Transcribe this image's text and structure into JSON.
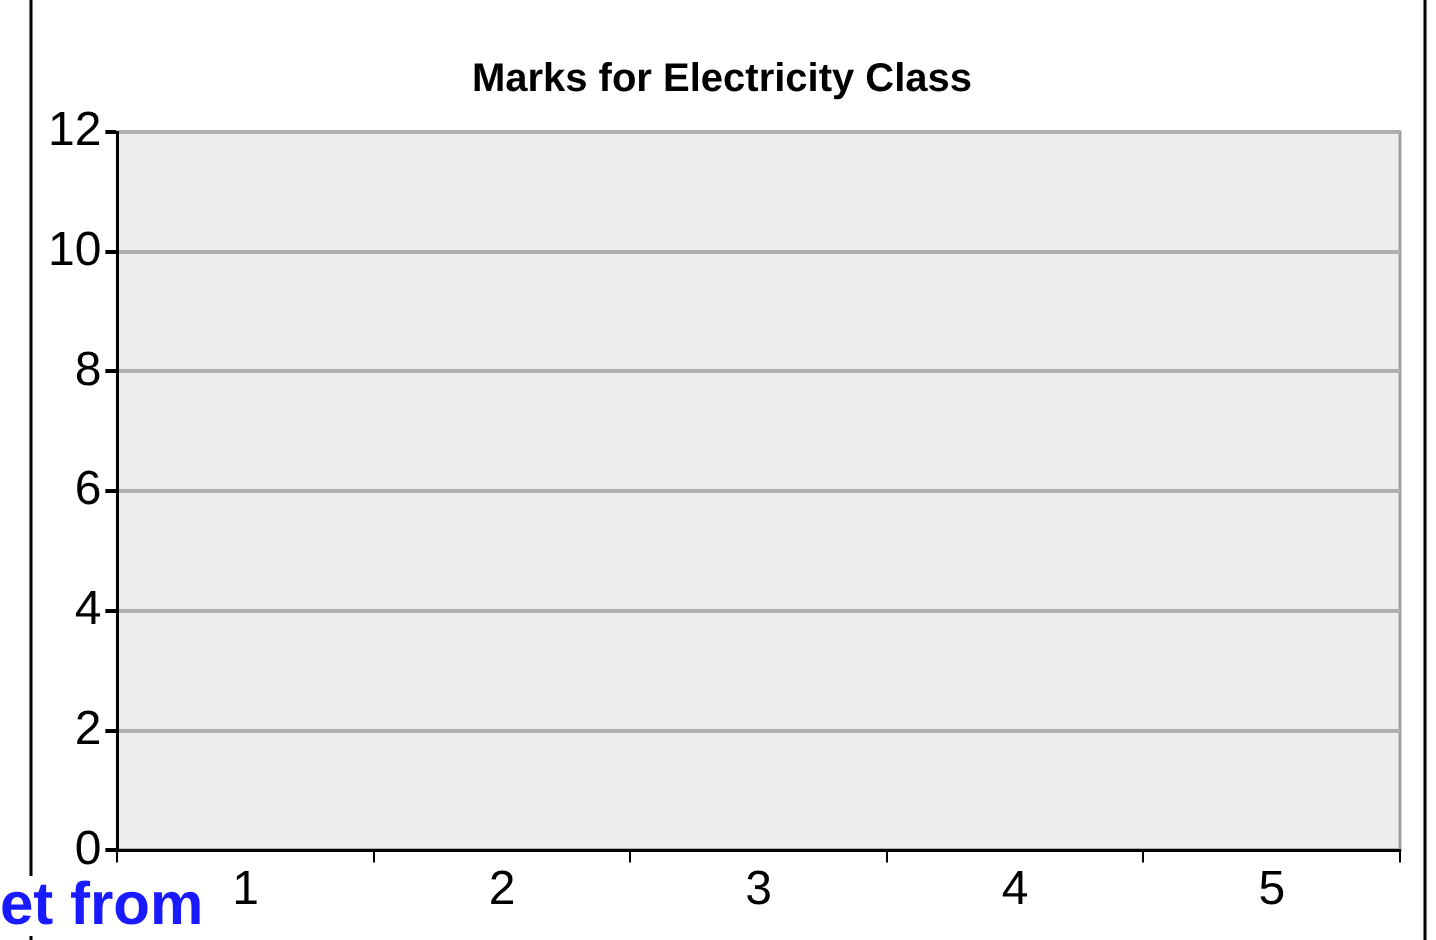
{
  "chart_data": {
    "type": "bar",
    "title": "Marks for Electricity Class",
    "categories": [
      "1",
      "2",
      "3",
      "4",
      "5"
    ],
    "values": [
      null,
      null,
      null,
      null,
      null
    ],
    "ylim": [
      0,
      12
    ],
    "yticks": [
      0,
      2,
      4,
      6,
      8,
      10,
      12
    ],
    "grid": "y",
    "annotations": [
      "et from"
    ]
  }
}
